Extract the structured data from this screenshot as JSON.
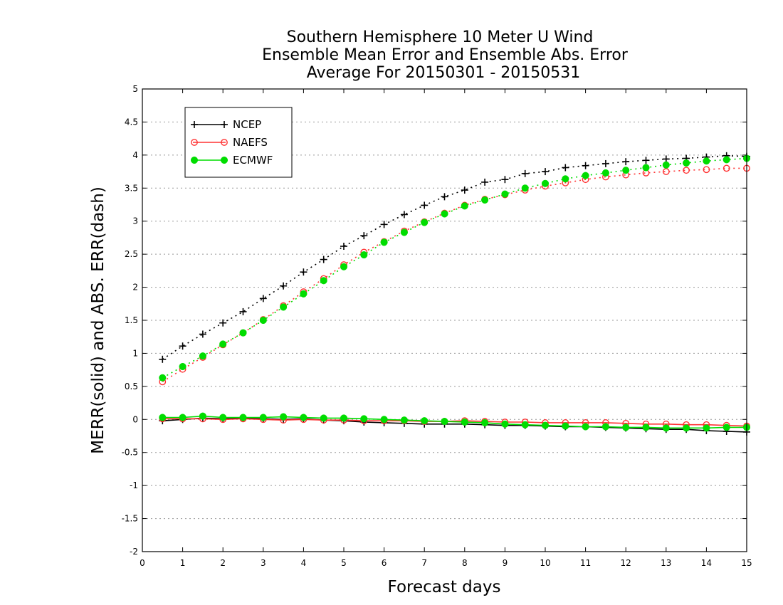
{
  "chart_data": {
    "type": "line",
    "title_lines": [
      "Southern Hemisphere 10 Meter U Wind",
      "Ensemble Mean Error and Ensemble Abs. Error",
      "Average For 20150301 - 20150531"
    ],
    "xlabel": "Forecast days",
    "ylabel": "MERR(solid) and ABS. ERR(dash)",
    "xlim": [
      0,
      15
    ],
    "ylim": [
      -2,
      5
    ],
    "x_ticks": [
      "0",
      "1",
      "2",
      "3",
      "4",
      "5",
      "6",
      "7",
      "8",
      "9",
      "10",
      "11",
      "12",
      "13",
      "14",
      "15"
    ],
    "y_ticks": [
      "-2",
      "-1.5",
      "-1",
      "-0.5",
      "0",
      "0.5",
      "1",
      "1.5",
      "2",
      "2.5",
      "3",
      "3.5",
      "4",
      "4.5",
      "5"
    ],
    "grid": "horizontal dotted",
    "legend_position": "top-left",
    "x": [
      0.5,
      1,
      1.5,
      2,
      2.5,
      3,
      3.5,
      4,
      4.5,
      5,
      5.5,
      6,
      6.5,
      7,
      7.5,
      8,
      8.5,
      9,
      9.5,
      10,
      10.5,
      11,
      11.5,
      12,
      12.5,
      13,
      13.5,
      14,
      14.5,
      15
    ],
    "series": [
      {
        "name": "NCEP",
        "color": "#000000",
        "marker": "plus",
        "abs_error": [
          0.91,
          1.11,
          1.29,
          1.46,
          1.63,
          1.83,
          2.02,
          2.23,
          2.42,
          2.62,
          2.78,
          2.95,
          3.1,
          3.24,
          3.37,
          3.47,
          3.59,
          3.63,
          3.72,
          3.75,
          3.81,
          3.84,
          3.87,
          3.9,
          3.92,
          3.94,
          3.95,
          3.97,
          3.99,
          3.98
        ],
        "mean_error": [
          -0.02,
          0.0,
          0.02,
          0.01,
          0.02,
          0.01,
          0.0,
          0.01,
          -0.01,
          -0.02,
          -0.04,
          -0.05,
          -0.06,
          -0.07,
          -0.07,
          -0.07,
          -0.08,
          -0.09,
          -0.09,
          -0.1,
          -0.11,
          -0.11,
          -0.12,
          -0.13,
          -0.14,
          -0.15,
          -0.15,
          -0.17,
          -0.18,
          -0.19
        ]
      },
      {
        "name": "NAEFS",
        "color": "#ff3333",
        "marker": "open-circle",
        "abs_error": [
          0.57,
          0.76,
          0.94,
          1.13,
          1.31,
          1.51,
          1.72,
          1.93,
          2.13,
          2.34,
          2.53,
          2.69,
          2.85,
          2.99,
          3.12,
          3.24,
          3.33,
          3.4,
          3.47,
          3.53,
          3.58,
          3.63,
          3.67,
          3.7,
          3.73,
          3.75,
          3.77,
          3.78,
          3.8,
          3.8
        ],
        "mean_error": [
          0.01,
          0.01,
          0.01,
          0.0,
          0.01,
          0.0,
          -0.01,
          0.0,
          -0.01,
          -0.01,
          -0.02,
          -0.02,
          -0.02,
          -0.03,
          -0.03,
          -0.02,
          -0.03,
          -0.04,
          -0.04,
          -0.05,
          -0.05,
          -0.05,
          -0.05,
          -0.06,
          -0.07,
          -0.07,
          -0.08,
          -0.08,
          -0.09,
          -0.1
        ]
      },
      {
        "name": "ECMWF",
        "color": "#00dd00",
        "marker": "filled-circle",
        "abs_error": [
          0.63,
          0.8,
          0.96,
          1.14,
          1.31,
          1.5,
          1.7,
          1.9,
          2.1,
          2.31,
          2.49,
          2.68,
          2.83,
          2.98,
          3.11,
          3.23,
          3.32,
          3.41,
          3.5,
          3.57,
          3.64,
          3.69,
          3.73,
          3.77,
          3.81,
          3.85,
          3.88,
          3.91,
          3.93,
          3.95
        ],
        "mean_error": [
          0.03,
          0.03,
          0.05,
          0.03,
          0.03,
          0.03,
          0.04,
          0.03,
          0.02,
          0.02,
          0.01,
          0.0,
          -0.01,
          -0.02,
          -0.03,
          -0.04,
          -0.05,
          -0.07,
          -0.08,
          -0.09,
          -0.1,
          -0.11,
          -0.11,
          -0.12,
          -0.12,
          -0.13,
          -0.13,
          -0.13,
          -0.12,
          -0.12
        ]
      }
    ]
  }
}
